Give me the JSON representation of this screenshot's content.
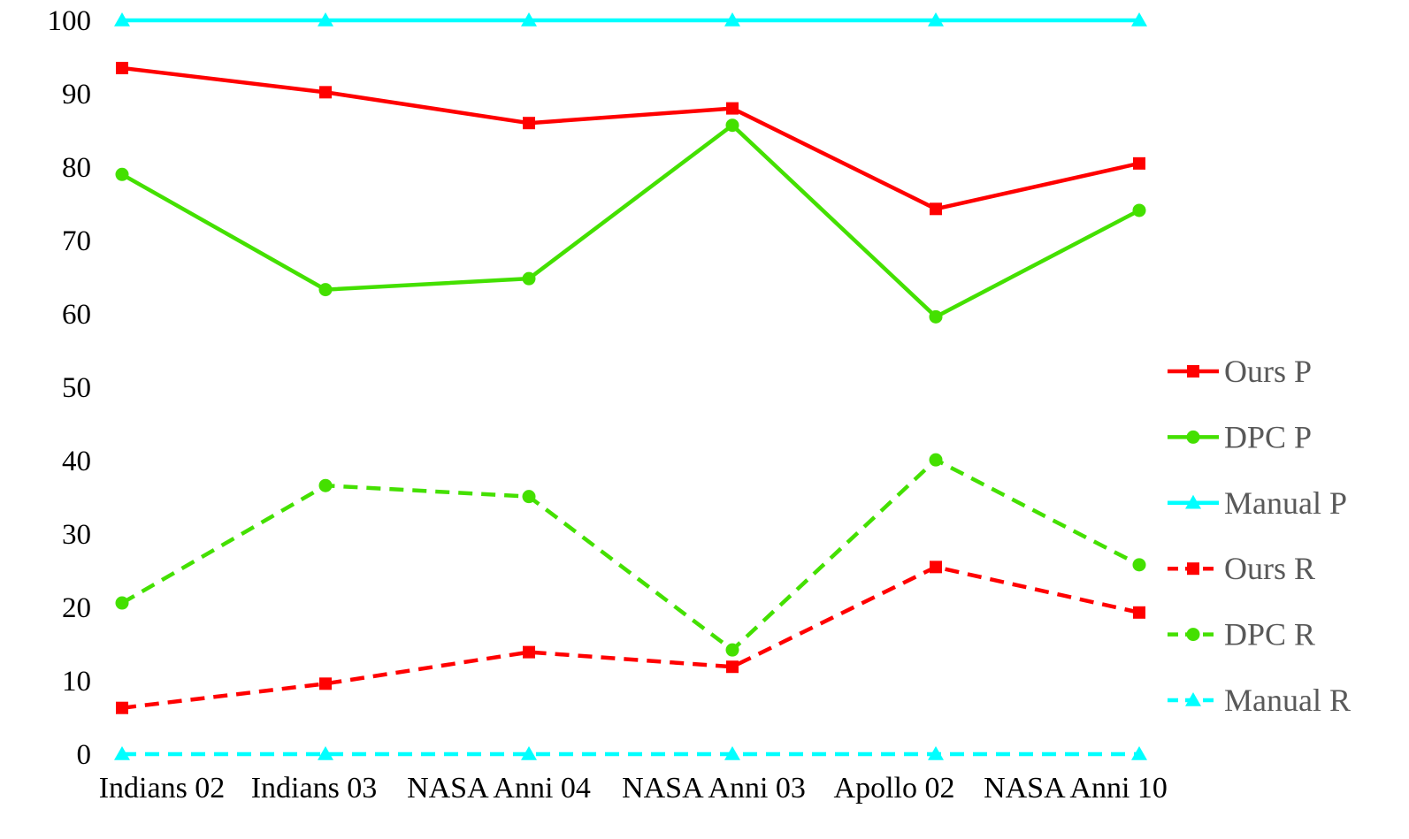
{
  "chart_data": {
    "type": "line",
    "title": "",
    "xlabel": "",
    "ylabel": "",
    "categories": [
      "Indians 02",
      "Indians 03",
      "NASA Anni 04",
      "NASA Anni 03",
      "Apollo 02",
      "NASA Anni 10"
    ],
    "ylim": [
      0,
      100
    ],
    "yticks": [
      0,
      10,
      20,
      30,
      40,
      50,
      60,
      70,
      80,
      90,
      100
    ],
    "grid": false,
    "legend": "right",
    "series": [
      {
        "name": "Ours P",
        "color": "#ff0000",
        "dash": false,
        "marker": "square",
        "values": [
          93.5,
          90.2,
          86.0,
          88.0,
          74.3,
          80.5
        ]
      },
      {
        "name": "DPC P",
        "color": "#44e000",
        "dash": false,
        "marker": "circle",
        "values": [
          79.0,
          63.3,
          64.8,
          85.7,
          59.6,
          74.1
        ]
      },
      {
        "name": "Manual P",
        "color": "#00ffff",
        "dash": false,
        "marker": "triangle",
        "values": [
          100,
          100,
          100,
          100,
          100,
          100
        ]
      },
      {
        "name": "Ours R",
        "color": "#ff0000",
        "dash": true,
        "marker": "square",
        "values": [
          6.3,
          9.6,
          13.9,
          11.9,
          25.5,
          19.3
        ]
      },
      {
        "name": "DPC R",
        "color": "#44e000",
        "dash": true,
        "marker": "circle",
        "values": [
          20.6,
          36.6,
          35.1,
          14.2,
          40.1,
          25.8
        ]
      },
      {
        "name": "Manual R",
        "color": "#00ffff",
        "dash": true,
        "marker": "triangle",
        "values": [
          0,
          0,
          0,
          0,
          0,
          0
        ]
      }
    ]
  }
}
